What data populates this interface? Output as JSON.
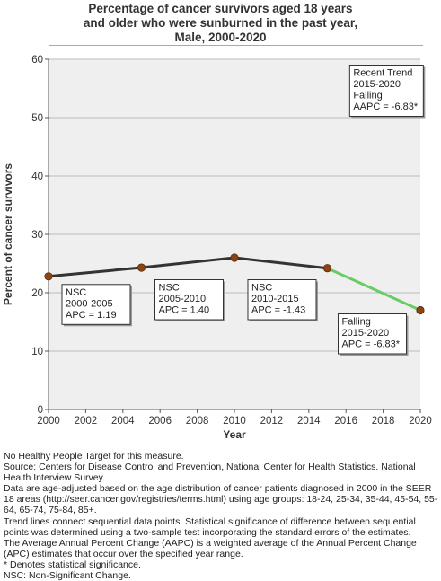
{
  "chart_data": {
    "type": "line",
    "title_lines": [
      "Percentage of cancer survivors aged 18 years",
      "and older who were sunburned in the past year,",
      "Male,  2000-2020"
    ],
    "xlabel": "Year",
    "ylabel": "Percent of cancer survivors",
    "xlim": [
      2000,
      2020
    ],
    "ylim": [
      0,
      60
    ],
    "x_ticks": [
      "2000",
      "2002",
      "2004",
      "2006",
      "2008",
      "2010",
      "2012",
      "2014",
      "2016",
      "2018",
      "2020"
    ],
    "y_ticks": [
      "0",
      "10",
      "20",
      "30",
      "40",
      "50",
      "60"
    ],
    "grid": "horizontal",
    "points": [
      {
        "x": 2000,
        "y": 22.8
      },
      {
        "x": 2005,
        "y": 24.3
      },
      {
        "x": 2010,
        "y": 26.0
      },
      {
        "x": 2015,
        "y": 24.2
      },
      {
        "x": 2020,
        "y": 17.0
      }
    ],
    "segments": [
      {
        "from": 2000,
        "to": 2005,
        "color": "#333333",
        "label": [
          "NSC",
          "2000-2005",
          "APC =  1.19"
        ]
      },
      {
        "from": 2005,
        "to": 2010,
        "color": "#333333",
        "label": [
          "NSC",
          "2005-2010",
          "APC =  1.40"
        ]
      },
      {
        "from": 2010,
        "to": 2015,
        "color": "#333333",
        "label": [
          "NSC",
          "2010-2015",
          "APC = -1.43"
        ]
      },
      {
        "from": 2015,
        "to": 2020,
        "color": "#66cc66",
        "label": [
          "Falling",
          "2015-2020",
          "APC = -6.83*"
        ]
      }
    ],
    "recent_trend": [
      "Recent Trend",
      "2015-2020",
      "Falling",
      "AAPC = -6.83*"
    ],
    "colors": {
      "plot_bg": "#efefef",
      "point": "#8b4513",
      "line": "#333333",
      "trend": "#66cc66"
    }
  },
  "footnotes": [
    "No Healthy People Target for this measure.",
    "Source: Centers for Disease Control and Prevention, National Center for Health Statistics. National Health Interview Survey.",
    "Data are age-adjusted based on the age distribution of cancer patients diagnosed in 2000 in the SEER 18 areas (http://seer.cancer.gov/registries/terms.html) using age groups: 18-24, 25-34, 35-44, 45-54, 55-64, 65-74, 75-84, 85+.",
    "Trend lines connect sequential data points. Statistical significance of difference between sequential points was determined using a two-sample test incorporating the standard errors of the estimates.",
    "The Average Annual Percent Change (AAPC) is a weighted average of the Annual Percent Change (APC) estimates that occur over the specified year range.",
    "* Denotes statistical significance.",
    "NSC: Non-Significant Change."
  ]
}
